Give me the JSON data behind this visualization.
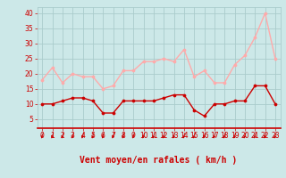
{
  "x": [
    0,
    1,
    2,
    3,
    4,
    5,
    6,
    7,
    8,
    9,
    10,
    11,
    12,
    13,
    14,
    15,
    16,
    17,
    18,
    19,
    20,
    21,
    22,
    23
  ],
  "vent_moyen": [
    10,
    10,
    11,
    12,
    12,
    11,
    7,
    7,
    11,
    11,
    11,
    11,
    12,
    13,
    13,
    8,
    6,
    10,
    10,
    11,
    11,
    16,
    16,
    10
  ],
  "vent_rafales": [
    18,
    22,
    17,
    20,
    19,
    19,
    15,
    16,
    21,
    21,
    24,
    24,
    25,
    24,
    28,
    19,
    21,
    17,
    17,
    23,
    26,
    32,
    40,
    25
  ],
  "color_moyen": "#cc0000",
  "color_rafales": "#ffaaaa",
  "background_color": "#cce8e8",
  "grid_color": "#aacccc",
  "xlabel": "Vent moyen/en rafales ( km/h )",
  "ylabel_ticks": [
    5,
    10,
    15,
    20,
    25,
    30,
    35,
    40
  ],
  "ylim": [
    2,
    42
  ],
  "xlim": [
    -0.5,
    23.5
  ],
  "xlabel_color": "#cc0000",
  "tick_fontsize": 5.5,
  "xlabel_fontsize": 7.0
}
